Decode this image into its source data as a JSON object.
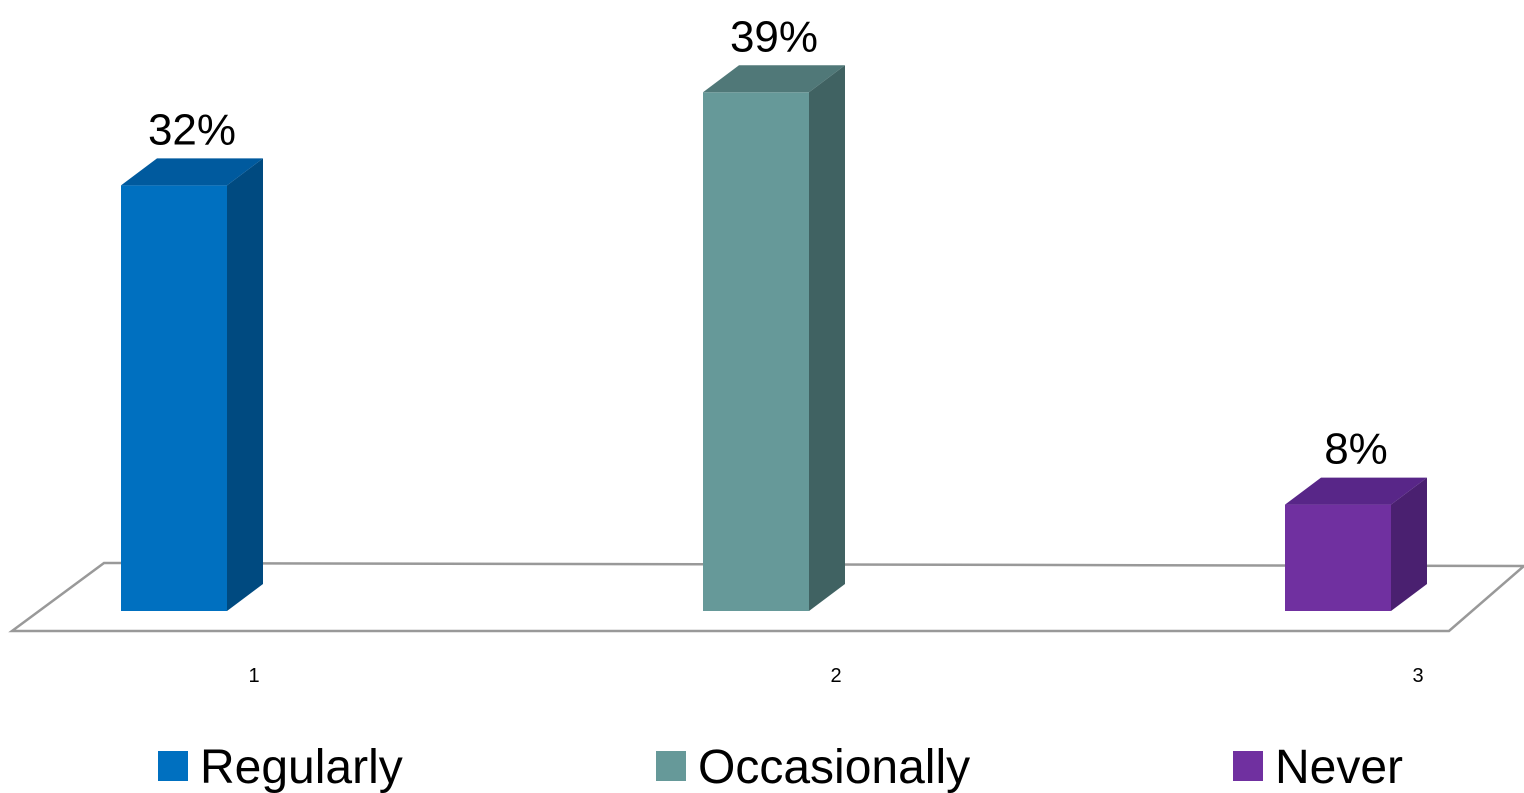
{
  "chart_data": {
    "type": "bar",
    "categories": [
      "1",
      "2",
      "3"
    ],
    "series": [
      {
        "name": "Regularly",
        "values": [
          32,
          null,
          null
        ],
        "label": "32%",
        "color": "#0070C0",
        "side_color": "#004A80",
        "top_color": "#005A9E"
      },
      {
        "name": "Occasionally",
        "values": [
          null,
          39,
          null
        ],
        "label": "39%",
        "color": "#669999",
        "side_color": "#406262",
        "top_color": "#507878"
      },
      {
        "name": "Never",
        "values": [
          null,
          null,
          8
        ],
        "label": "8%",
        "color": "#7030A0",
        "side_color": "#4A2070",
        "top_color": "#582688"
      }
    ],
    "value_suffix": "%",
    "ylim": [
      0,
      40
    ],
    "grid": false,
    "legend_position": "bottom",
    "style": "3d-column",
    "floor_color": "#999999"
  }
}
